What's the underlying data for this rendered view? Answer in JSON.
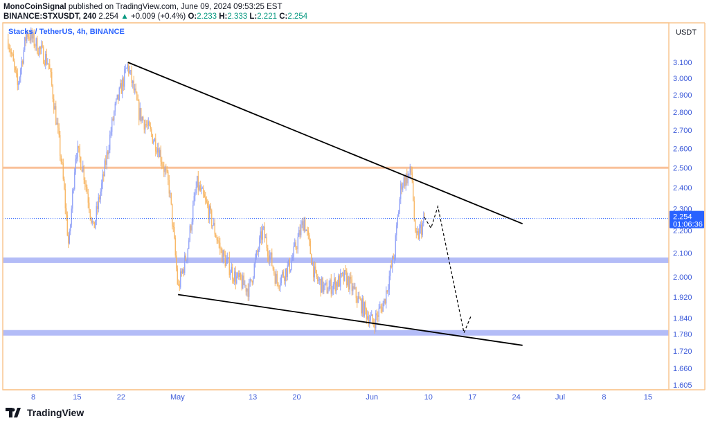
{
  "header": {
    "author": "MonoCoinSignal",
    "published": "published on TradingView.com, June 09, 2024 09:53:25 EST",
    "symbol": "BINANCE:STXUSDT, 240",
    "price": "2.254",
    "change": "+0.009 (+0.4%)",
    "o_label": "O:",
    "o": "2.233",
    "h_label": "H:",
    "h": "2.333",
    "l_label": "L:",
    "l": "2.221",
    "c_label": "C:",
    "c": "2.254"
  },
  "footer": {
    "brand": "TradingView"
  },
  "colors": {
    "up": "#8fa0f7",
    "down": "#f7b35e",
    "frame": "#f9c690",
    "support": "#b3bcf7",
    "resistance": "#f9c19a",
    "axis_text": "#3d5bd9",
    "label_bg": "#2962ff"
  },
  "chart_data": {
    "type": "candlestick",
    "title": "Stacks / TetherUS, 4h, BINANCE",
    "currency": "USDT",
    "y_scale": "log",
    "ylim": [
      1.58,
      3.36
    ],
    "y_ticks": [
      "3.100",
      "3.000",
      "2.900",
      "2.800",
      "2.700",
      "2.600",
      "2.500",
      "2.400",
      "2.300",
      "2.200",
      "2.100",
      "2.000",
      "1.920",
      "1.840",
      "1.780",
      "1.720",
      "1.660",
      "1.605"
    ],
    "x_ticks": [
      {
        "label": "8",
        "date": "2024-04-08"
      },
      {
        "label": "15",
        "date": "2024-04-15"
      },
      {
        "label": "22",
        "date": "2024-04-22"
      },
      {
        "label": "May",
        "date": "2024-05-01"
      },
      {
        "label": "13",
        "date": "2024-05-13"
      },
      {
        "label": "20",
        "date": "2024-05-20"
      },
      {
        "label": "Jun",
        "date": "2024-06-01"
      },
      {
        "label": "10",
        "date": "2024-06-10"
      },
      {
        "label": "17",
        "date": "2024-06-17"
      },
      {
        "label": "24",
        "date": "2024-06-24"
      },
      {
        "label": "Jul",
        "date": "2024-07-01"
      },
      {
        "label": "8",
        "date": "2024-07-08"
      },
      {
        "label": "15",
        "date": "2024-07-15"
      }
    ],
    "price_path": [
      [
        "2024-04-04",
        3.25
      ],
      [
        "2024-04-05T12:00",
        2.95
      ],
      [
        "2024-04-07",
        3.3
      ],
      [
        "2024-04-10T10:00",
        3.1
      ],
      [
        "2024-04-12T14:00",
        2.5
      ],
      [
        "2024-04-13T16:00",
        2.12
      ],
      [
        "2024-04-14T20:00",
        2.6
      ],
      [
        "2024-04-15T22:00",
        2.5
      ],
      [
        "2024-04-17T14:00",
        2.2
      ],
      [
        "2024-04-19T04:00",
        2.45
      ],
      [
        "2024-04-20T22:00",
        2.8
      ],
      [
        "2024-04-23T02:00",
        3.08
      ],
      [
        "2024-04-24T20:00",
        2.8
      ],
      [
        "2024-04-28",
        2.6
      ],
      [
        "2024-04-29T16:00",
        2.4
      ],
      [
        "2024-05-01T02:00",
        1.95
      ],
      [
        "2024-05-02T12:00",
        2.1
      ],
      [
        "2024-05-04T02:00",
        2.42
      ],
      [
        "2024-05-05T20:00",
        2.3
      ],
      [
        "2024-05-08",
        2.1
      ],
      [
        "2024-05-10T04:00",
        2.0
      ],
      [
        "2024-05-12T10:00",
        1.95
      ],
      [
        "2024-05-14T14:00",
        2.2
      ],
      [
        "2024-05-16T20:00",
        1.98
      ],
      [
        "2024-05-19",
        2.05
      ],
      [
        "2024-05-21T04:00",
        2.25
      ],
      [
        "2024-05-22T22:00",
        2.0
      ],
      [
        "2024-05-24T12:00",
        1.95
      ],
      [
        "2024-05-27T20:00",
        2.0
      ],
      [
        "2024-05-30",
        1.9
      ],
      [
        "2024-06-01T04:00",
        1.82
      ],
      [
        "2024-06-02T22:00",
        1.9
      ],
      [
        "2024-06-04T14:00",
        2.1
      ],
      [
        "2024-06-05T16:00",
        2.42
      ],
      [
        "2024-06-07T08:00",
        2.48
      ],
      [
        "2024-06-07T22:00",
        2.15
      ],
      [
        "2024-06-09T12:00",
        2.254
      ]
    ],
    "current_price": {
      "value": "2.254",
      "countdown": "01:06:36"
    },
    "drawings": {
      "resistance_line": [
        [
          "2024-04-23T02:00",
          3.1
        ],
        [
          "2024-06-25",
          2.23
        ]
      ],
      "support_line": [
        [
          "2024-05-01T02:00",
          1.93
        ],
        [
          "2024-06-25",
          1.74
        ]
      ],
      "horizontal_levels": [
        {
          "price": 2.5,
          "kind": "resistance"
        },
        {
          "price": 2.07,
          "kind": "support"
        },
        {
          "price": 1.785,
          "kind": "support"
        }
      ],
      "projection": [
        [
          "2024-06-09T08:00",
          2.26
        ],
        [
          "2024-06-10T10:00",
          2.21
        ],
        [
          "2024-06-11T12:00",
          2.31
        ],
        [
          "2024-06-15T16:00",
          1.785
        ],
        [
          "2024-06-16T20:00",
          1.85
        ]
      ]
    }
  }
}
